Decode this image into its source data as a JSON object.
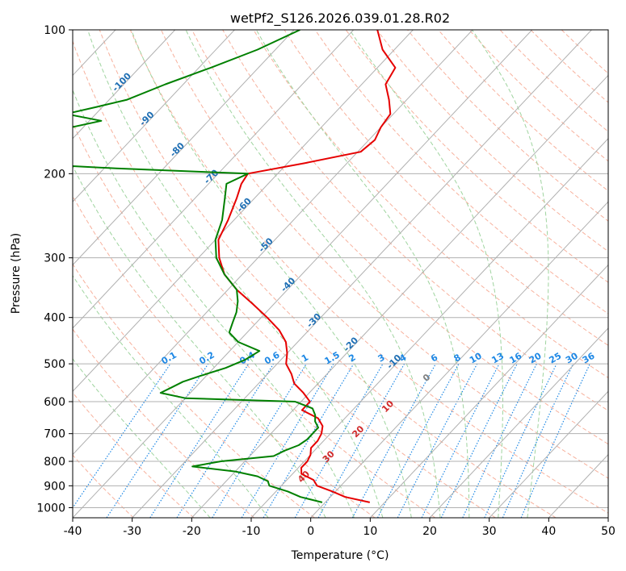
{
  "chart_data": {
    "type": "line",
    "title": "wetPf2_S126.2026.039.01.28.R02",
    "xlabel": "Temperature (°C)",
    "ylabel": "Pressure (hPa)",
    "xlim": [
      -40,
      50
    ],
    "ylim": [
      1050,
      100
    ],
    "y_scale": "log",
    "skew": "skew-T log-P",
    "grid": true,
    "x_ticks": [
      -40,
      -30,
      -20,
      -10,
      0,
      10,
      20,
      30,
      40,
      50
    ],
    "y_ticks": [
      100,
      200,
      300,
      400,
      500,
      600,
      700,
      800,
      900,
      1000
    ],
    "colors": {
      "temperature": "#e60000",
      "dewpoint": "#008000",
      "isotherm": "#b0b0b0",
      "dry_adiabat": "#f7b19d",
      "moist_adiabat": "#9fd49f",
      "mixing_ratio": "#1e88e5",
      "dry_adiabat_label": "#1f6fb4",
      "theta_e_label": "#d12a2a"
    },
    "series": [
      {
        "key": "temperature",
        "pressure": [
          975,
          950,
          925,
          900,
          875,
          850,
          825,
          800,
          775,
          750,
          725,
          700,
          675,
          650,
          625,
          600,
          575,
          550,
          525,
          500,
          475,
          450,
          425,
          400,
          375,
          350,
          325,
          300,
          275,
          250,
          225,
          210,
          200,
          190,
          180,
          170,
          160,
          150,
          140,
          130,
          120,
          110,
          100
        ],
        "values": [
          7.5,
          2.5,
          -0.5,
          -4.0,
          -5.5,
          -8.5,
          -9.5,
          -9.5,
          -10.0,
          -11.0,
          -11.0,
          -11.5,
          -12.5,
          -14.5,
          -18.5,
          -18.5,
          -21.0,
          -24.0,
          -26.0,
          -28.5,
          -30.0,
          -32.0,
          -35.0,
          -39.0,
          -43.5,
          -48.5,
          -53.0,
          -56.5,
          -59.5,
          -61.0,
          -63.0,
          -64.5,
          -65.0,
          -57.0,
          -49.5,
          -49.0,
          -50.0,
          -50.5,
          -53.0,
          -56.0,
          -57.0,
          -62.0,
          -66.0
        ]
      },
      {
        "key": "dewpoint",
        "pressure": [
          975,
          950,
          925,
          900,
          880,
          860,
          840,
          820,
          800,
          780,
          760,
          740,
          720,
          700,
          680,
          660,
          640,
          620,
          600,
          590,
          575,
          560,
          545,
          530,
          510,
          490,
          470,
          450,
          430,
          410,
          390,
          370,
          350,
          325,
          300,
          275,
          250,
          225,
          210,
          200,
          195,
          190,
          185,
          175,
          165,
          160,
          155,
          150,
          145,
          140,
          130,
          120,
          110,
          100
        ],
        "values": [
          -0.5,
          -5.0,
          -8.0,
          -12.0,
          -13.0,
          -15.5,
          -20.0,
          -28.0,
          -24.0,
          -16.0,
          -15.0,
          -13.5,
          -13.0,
          -13.0,
          -13.0,
          -14.5,
          -15.5,
          -17.0,
          -21.0,
          -40.0,
          -45.0,
          -44.0,
          -43.0,
          -41.0,
          -38.0,
          -36.0,
          -35.0,
          -40.0,
          -43.0,
          -44.0,
          -45.0,
          -46.5,
          -48.5,
          -53.0,
          -57.0,
          -60.0,
          -62.0,
          -65.0,
          -67.0,
          -65.0,
          -88.0,
          -106.0,
          -107.0,
          -104.0,
          -101.0,
          -102.0,
          -98.0,
          -105.0,
          -101.0,
          -97.0,
          -93.0,
          -88.0,
          -83.0,
          -79.0
        ]
      }
    ],
    "isotherm_values": [
      -110,
      -100,
      -90,
      -80,
      -70,
      -60,
      -50,
      -40,
      -30,
      -20,
      -10,
      0,
      10,
      20,
      30,
      40,
      50
    ],
    "dry_adiabat_labels": [
      "-100",
      "-90",
      "-80",
      "-70",
      "-60",
      "-50",
      "-40",
      "-30",
      "-20",
      "-10"
    ],
    "dry_adiabat_label_positions": [
      [
        -100,
        130
      ],
      [
        -90,
        155
      ],
      [
        -80,
        180
      ],
      [
        -70,
        205
      ],
      [
        -60,
        235
      ],
      [
        -50,
        285
      ],
      [
        -40,
        345
      ],
      [
        -30,
        410
      ],
      [
        -20,
        460
      ],
      [
        -10,
        500
      ]
    ],
    "mixing_ratio_labels": [
      "0.1",
      "0.2",
      "0.4",
      "0.6",
      "1",
      "1.5",
      "2",
      "3",
      "4",
      "6",
      "8",
      "10",
      "13",
      "16",
      "20",
      "25",
      "30",
      "36"
    ],
    "mixing_ratio_values": [
      0.1,
      0.2,
      0.4,
      0.6,
      1,
      1.5,
      2,
      3,
      4,
      6,
      8,
      10,
      13,
      16,
      20,
      25,
      30,
      36
    ],
    "mixing_ratio_label_pressure": 500,
    "theta_e_labels": [
      "0",
      "10",
      "20",
      "30",
      "40"
    ],
    "theta_e_label_positions": [
      [
        -2,
        540
      ],
      [
        -4,
        620
      ],
      [
        -5,
        700
      ],
      [
        -6,
        790
      ],
      [
        -7,
        870
      ]
    ]
  }
}
